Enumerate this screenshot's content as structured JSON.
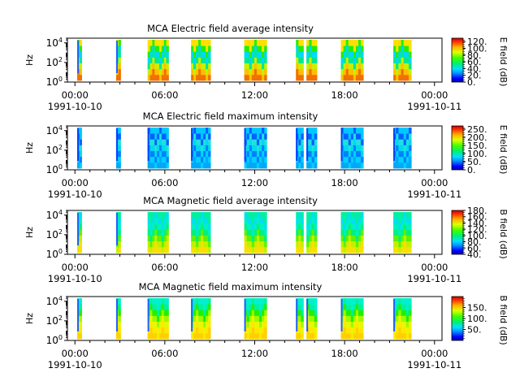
{
  "chart_data": [
    {
      "type": "heatmap",
      "title": "MCA  Electric field average intensity",
      "ylabel": "Hz",
      "y_scale": "log",
      "ylim": [
        1,
        30000
      ],
      "y_ticks": [
        {
          "exp": "0",
          "value": 1
        },
        {
          "exp": "2",
          "value": 100
        },
        {
          "exp": "4",
          "value": 10000
        }
      ],
      "colorbar": {
        "label": "E field (dB)",
        "range": [
          0,
          130
        ],
        "ticks": [
          "0.",
          "20.",
          "40.",
          "60.",
          "80.",
          "100.",
          "120."
        ]
      },
      "palette": "avg_e"
    },
    {
      "type": "heatmap",
      "title": "MCA  Electric field maximum intensity",
      "ylabel": "Hz",
      "y_scale": "log",
      "ylim": [
        1,
        30000
      ],
      "y_ticks": [
        {
          "exp": "0",
          "value": 1
        },
        {
          "exp": "2",
          "value": 100
        },
        {
          "exp": "4",
          "value": 10000
        }
      ],
      "colorbar": {
        "label": "E field (dB)",
        "range": [
          0,
          270
        ],
        "ticks": [
          "0.",
          "50.",
          "100.",
          "150.",
          "200.",
          "250."
        ]
      },
      "palette": "max_e"
    },
    {
      "type": "heatmap",
      "title": "MCA  Magnetic field average intensity",
      "ylabel": "Hz",
      "y_scale": "log",
      "ylim": [
        1,
        30000
      ],
      "y_ticks": [
        {
          "exp": "0",
          "value": 1
        },
        {
          "exp": "2",
          "value": 100
        },
        {
          "exp": "4",
          "value": 10000
        }
      ],
      "colorbar": {
        "label": "B field (dB)",
        "range": [
          40,
          180
        ],
        "ticks": [
          "40.",
          "60.",
          "80.",
          "100.",
          "120.",
          "140.",
          "160.",
          "180."
        ]
      },
      "palette": "avg_b"
    },
    {
      "type": "heatmap",
      "title": "MCA  Magnetic field maximum intensity",
      "ylabel": "Hz",
      "y_scale": "log",
      "ylim": [
        1,
        30000
      ],
      "y_ticks": [
        {
          "exp": "0",
          "value": 1
        },
        {
          "exp": "2",
          "value": 100
        },
        {
          "exp": "4",
          "value": 10000
        }
      ],
      "colorbar": {
        "label": "B field (dB)",
        "range": [
          0,
          200
        ],
        "ticks": [
          "50.",
          "100.",
          "150."
        ]
      },
      "palette": "max_b"
    }
  ],
  "x_axis": {
    "range_hours": [
      -0.5,
      24.5
    ],
    "major_ticks": [
      {
        "hour": 0,
        "label": "00:00",
        "date": "1991-10-10"
      },
      {
        "hour": 6,
        "label": "06:00",
        "date": ""
      },
      {
        "hour": 12,
        "label": "12:00",
        "date": ""
      },
      {
        "hour": 18,
        "label": "18:00",
        "date": ""
      },
      {
        "hour": 24,
        "label": "00:00",
        "date": "1991-10-11"
      }
    ],
    "minor_ticks_hours": [
      1,
      2,
      3,
      4,
      5,
      7,
      8,
      9,
      10,
      11,
      13,
      14,
      15,
      16,
      17,
      19,
      20,
      21,
      22,
      23
    ]
  },
  "data_intervals_hours": [
    [
      0.15,
      0.45
    ],
    [
      2.75,
      3.05
    ],
    [
      4.85,
      6.25
    ],
    [
      7.75,
      9.05
    ],
    [
      11.3,
      12.8
    ],
    [
      14.75,
      15.25
    ],
    [
      15.45,
      16.15
    ],
    [
      17.75,
      19.25
    ],
    [
      21.25,
      22.45
    ]
  ]
}
